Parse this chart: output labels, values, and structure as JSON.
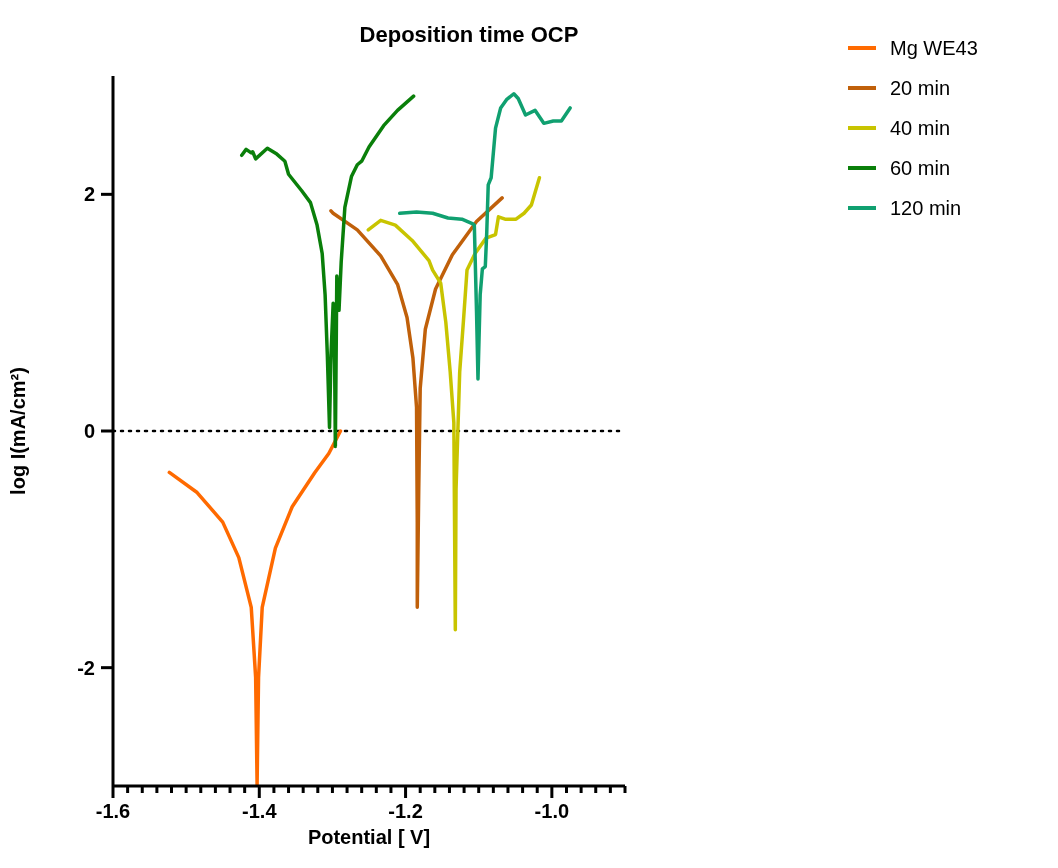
{
  "chart_data": {
    "type": "line",
    "title": "Deposition time OCP",
    "xlabel": "Potential [ V]",
    "ylabel": "log I(mA/cm²)",
    "xlim": [
      -1.6,
      -0.9
    ],
    "ylim": [
      -3,
      3
    ],
    "xticks": [
      -1.6,
      {
        "value": -1.58,
        "label": null
      },
      {
        "value": -1.56,
        "label": null
      },
      {
        "value": -1.54,
        "label": null
      },
      {
        "value": -1.52,
        "label": null
      },
      {
        "value": -1.5,
        "label": null
      },
      {
        "value": -1.48,
        "label": null
      },
      {
        "value": -1.46,
        "label": null
      },
      {
        "value": -1.44,
        "label": null
      },
      {
        "value": -1.42,
        "label": null
      },
      -1.4,
      {
        "value": -1.38,
        "label": null
      },
      {
        "value": -1.36,
        "label": null
      },
      {
        "value": -1.34,
        "label": null
      },
      {
        "value": -1.32,
        "label": null
      },
      {
        "value": -1.3,
        "label": null
      },
      {
        "value": -1.28,
        "label": null
      },
      {
        "value": -1.26,
        "label": null
      },
      {
        "value": -1.24,
        "label": null
      },
      {
        "value": -1.22,
        "label": null
      },
      -1.2,
      {
        "value": -1.18,
        "label": null
      },
      {
        "value": -1.16,
        "label": null
      },
      {
        "value": -1.14,
        "label": null
      },
      {
        "value": -1.12,
        "label": null
      },
      {
        "value": -1.1,
        "label": null
      },
      {
        "value": -1.08,
        "label": null
      },
      {
        "value": -1.06,
        "label": null
      },
      {
        "value": -1.04,
        "label": null
      },
      {
        "value": -1.02,
        "label": null
      },
      {
        "value": -1.0,
        "label": "-1.0"
      },
      {
        "value": -0.98,
        "label": null
      },
      {
        "value": -0.96,
        "label": null
      },
      {
        "value": -0.94,
        "label": null
      },
      {
        "value": -0.92,
        "label": null
      },
      {
        "value": -0.9,
        "label": null
      }
    ],
    "yticks": [
      -2,
      0,
      2
    ],
    "legend": "top right",
    "marker": "none",
    "line_style": "solid",
    "ref_lines": [
      {
        "axis": "y",
        "value": 0,
        "color": "#000000",
        "line_style": "dotted"
      }
    ],
    "series": [
      {
        "name": "Mg WE43",
        "color": "#ff6a00",
        "x": [
          -1.523,
          -1.485,
          -1.45,
          -1.428,
          -1.411,
          -1.405,
          -1.403,
          -1.401,
          -1.396,
          -1.378,
          -1.355,
          -1.324,
          -1.305,
          -1.289
        ],
        "values": [
          -0.35,
          -0.52,
          -0.77,
          -1.07,
          -1.49,
          -2.08,
          -2.99,
          -2.08,
          -1.49,
          -0.99,
          -0.64,
          -0.35,
          -0.19,
          0.0
        ]
      },
      {
        "name": "20 min",
        "color": "#c0600a",
        "x": [
          -1.302,
          -1.299,
          -1.266,
          -1.234,
          -1.211,
          -1.198,
          -1.19,
          -1.185,
          -1.184,
          -1.184,
          -1.182,
          -1.18,
          -1.173,
          -1.159,
          -1.136,
          -1.103,
          -1.068
        ],
        "values": [
          1.86,
          1.84,
          1.7,
          1.48,
          1.24,
          0.96,
          0.62,
          0.2,
          -0.77,
          -1.49,
          -0.49,
          0.36,
          0.86,
          1.2,
          1.49,
          1.77,
          1.97
        ]
      },
      {
        "name": "40 min",
        "color": "#c8c400",
        "x": [
          -1.251,
          -1.234,
          -1.214,
          -1.191,
          -1.168,
          -1.163,
          -1.152,
          -1.145,
          -1.139,
          -1.134,
          -1.132,
          -1.131,
          -1.126,
          -1.121,
          -1.116,
          -1.105,
          -1.09,
          -1.077,
          -1.073,
          -1.064,
          -1.049,
          -1.038,
          -1.028,
          -1.017
        ],
        "values": [
          1.7,
          1.78,
          1.74,
          1.61,
          1.44,
          1.36,
          1.25,
          0.92,
          0.5,
          0.07,
          -1.68,
          -0.49,
          0.5,
          0.92,
          1.36,
          1.5,
          1.63,
          1.66,
          1.81,
          1.79,
          1.79,
          1.84,
          1.91,
          2.14
        ]
      },
      {
        "name": "60 min",
        "color": "#0a7f0a",
        "x": [
          -1.424,
          -1.418,
          -1.411,
          -1.409,
          -1.405,
          -1.389,
          -1.376,
          -1.365,
          -1.36,
          -1.342,
          -1.33,
          -1.321,
          -1.314,
          -1.31,
          -1.307,
          -1.304,
          -1.302,
          -1.299,
          -1.297,
          -1.296,
          -1.294,
          -1.291,
          -1.288,
          -1.283,
          -1.274,
          -1.266,
          -1.26,
          -1.25,
          -1.23,
          -1.211,
          -1.189
        ],
        "values": [
          2.33,
          2.38,
          2.35,
          2.36,
          2.3,
          2.39,
          2.34,
          2.28,
          2.17,
          2.03,
          1.93,
          1.74,
          1.5,
          1.15,
          0.65,
          0.03,
          0.64,
          1.08,
          0.57,
          -0.13,
          1.31,
          1.02,
          1.43,
          1.89,
          2.15,
          2.25,
          2.28,
          2.4,
          2.58,
          2.71,
          2.83
        ]
      },
      {
        "name": "120 min",
        "color": "#10a070",
        "x": [
          -1.208,
          -1.185,
          -1.163,
          -1.142,
          -1.123,
          -1.108,
          -1.106,
          -1.103,
          -1.101,
          -1.098,
          -1.095,
          -1.091,
          -1.089,
          -1.087,
          -1.083,
          -1.077,
          -1.07,
          -1.062,
          -1.052,
          -1.046,
          -1.036,
          -1.023,
          -1.011,
          -0.998,
          -0.987,
          -0.975
        ],
        "values": [
          1.84,
          1.85,
          1.84,
          1.8,
          1.79,
          1.75,
          1.74,
          1.01,
          0.44,
          1.15,
          1.37,
          1.39,
          1.68,
          2.08,
          2.14,
          2.56,
          2.73,
          2.8,
          2.85,
          2.81,
          2.67,
          2.71,
          2.6,
          2.62,
          2.62,
          2.73
        ]
      }
    ]
  }
}
